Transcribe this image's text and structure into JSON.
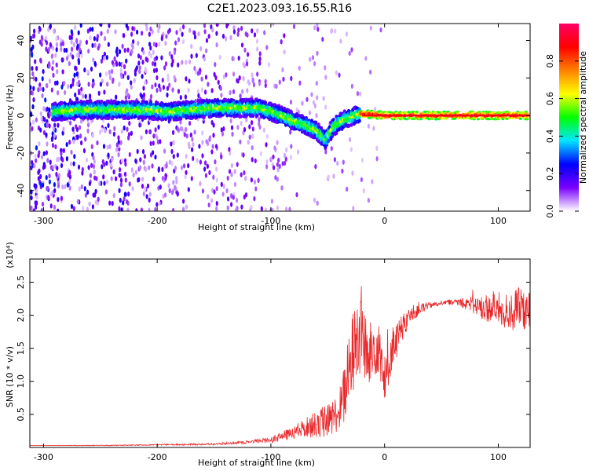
{
  "title": "C2E1.2023.093.16.55.R16",
  "chart_data": [
    {
      "type": "heatmap",
      "title": "",
      "xlabel": "Height of straight line (km)",
      "ylabel": "Frequency (Hz)",
      "xlim": [
        -312,
        128
      ],
      "ylim": [
        -51,
        49
      ],
      "x_ticks": [
        -300,
        -200,
        -100,
        0,
        100
      ],
      "x_tick_labels": [
        "-300",
        "-200",
        "-100",
        "0",
        "100"
      ],
      "y_ticks": [
        -40,
        -20,
        0,
        20,
        40
      ],
      "y_tick_labels": [
        "-40",
        "-20",
        "0",
        "20",
        "40"
      ],
      "ridge": [
        {
          "x": -290,
          "y": 2
        },
        {
          "x": -270,
          "y": 3
        },
        {
          "x": -250,
          "y": 3
        },
        {
          "x": -230,
          "y": 3
        },
        {
          "x": -210,
          "y": 3
        },
        {
          "x": -190,
          "y": 2
        },
        {
          "x": -170,
          "y": 3
        },
        {
          "x": -150,
          "y": 4
        },
        {
          "x": -130,
          "y": 4
        },
        {
          "x": -110,
          "y": 4
        },
        {
          "x": -100,
          "y": 2
        },
        {
          "x": -90,
          "y": 0
        },
        {
          "x": -80,
          "y": -3
        },
        {
          "x": -70,
          "y": -5
        },
        {
          "x": -60,
          "y": -8
        },
        {
          "x": -52,
          "y": -13
        },
        {
          "x": -45,
          "y": -6
        },
        {
          "x": -35,
          "y": -2
        },
        {
          "x": -20,
          "y": 1
        },
        {
          "x": 0,
          "y": 0
        },
        {
          "x": 40,
          "y": 0
        },
        {
          "x": 80,
          "y": 0
        },
        {
          "x": 126,
          "y": 0
        }
      ],
      "colorbar": {
        "label": "Normalized spectral amplitude",
        "range": [
          0,
          1
        ],
        "ticks": [
          0.0,
          0.2,
          0.4,
          0.6,
          0.8
        ],
        "tick_labels": [
          "0.0",
          "0.2",
          "0.4",
          "0.6",
          "0.8"
        ],
        "colors": [
          "#ffffff",
          "#7a00ff",
          "#0000ff",
          "#00e5ff",
          "#00ff00",
          "#ffff00",
          "#ff8000",
          "#ff0000",
          "#ff0066"
        ]
      },
      "grid": false,
      "legend": "none"
    },
    {
      "type": "line",
      "title": "",
      "xlabel": "Height of straight line (km)",
      "ylabel": "SNR (10 * v/v)",
      "y_scale_label": "(x10⁴)",
      "xlim": [
        -312,
        128
      ],
      "ylim": [
        0,
        2.85
      ],
      "x_ticks": [
        -300,
        -200,
        -100,
        0,
        100
      ],
      "x_tick_labels": [
        "-300",
        "-200",
        "-100",
        "0",
        "100"
      ],
      "y_ticks": [
        0.5,
        1.0,
        1.5,
        2.0,
        2.5
      ],
      "y_tick_labels": [
        "0.5",
        "1.0",
        "1.5",
        "2.0",
        "2.5"
      ],
      "line_color": "#e8282a",
      "grid": false,
      "legend": "none",
      "x": [
        -312,
        -250,
        -200,
        -150,
        -120,
        -100,
        -80,
        -70,
        -60,
        -50,
        -40,
        -35,
        -30,
        -25,
        -20,
        -15,
        -10,
        -5,
        0,
        5,
        10,
        15,
        20,
        30,
        40,
        50,
        60,
        70,
        80,
        90,
        100,
        110,
        120,
        128
      ],
      "values": [
        0.03,
        0.03,
        0.04,
        0.05,
        0.08,
        0.12,
        0.22,
        0.3,
        0.35,
        0.4,
        0.55,
        0.8,
        1.3,
        1.6,
        1.8,
        1.3,
        1.5,
        1.6,
        1.0,
        1.4,
        1.6,
        1.8,
        1.95,
        2.1,
        2.15,
        2.2,
        2.2,
        2.2,
        2.15,
        2.1,
        2.1,
        2.05,
        2.1,
        2.05
      ],
      "noise_amplitude": [
        0.0,
        0.005,
        0.008,
        0.015,
        0.02,
        0.05,
        0.1,
        0.15,
        0.2,
        0.25,
        0.3,
        0.5,
        0.6,
        0.7,
        0.7,
        0.5,
        0.5,
        0.45,
        0.4,
        0.35,
        0.3,
        0.2,
        0.15,
        0.1,
        0.05,
        0.04,
        0.04,
        0.1,
        0.15,
        0.2,
        0.25,
        0.3,
        0.35,
        0.3
      ]
    }
  ]
}
